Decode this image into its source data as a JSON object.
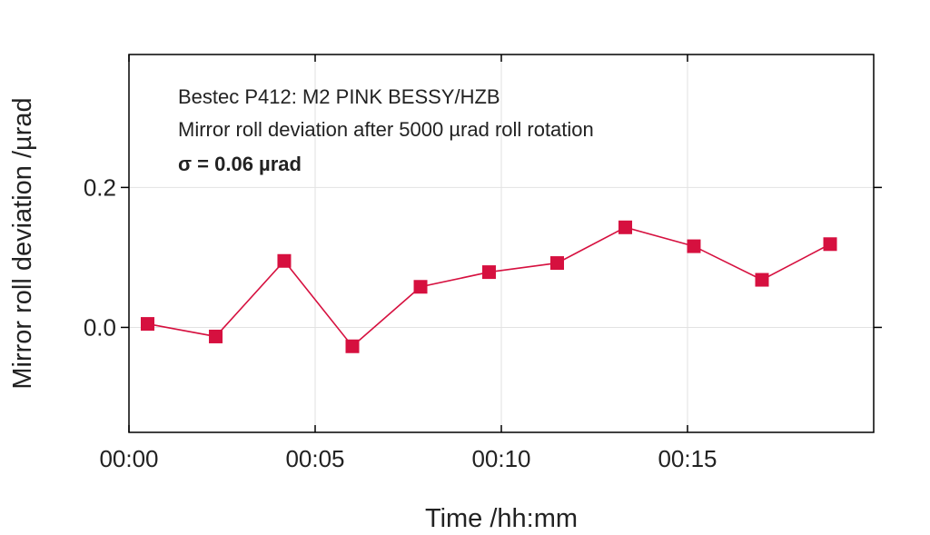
{
  "chart_data": {
    "type": "line",
    "xlabel": "Time /hh:mm",
    "ylabel": "Mirror roll deviation /µrad",
    "xlim": [
      0,
      20
    ],
    "ylim": [
      -0.15,
      0.39
    ],
    "xticks": [
      {
        "value": 0,
        "label": "00:00"
      },
      {
        "value": 5,
        "label": "00:05"
      },
      {
        "value": 10,
        "label": "00:10"
      },
      {
        "value": 15,
        "label": "00:15"
      }
    ],
    "yticks": [
      {
        "value": 0.0,
        "label": "0.0"
      },
      {
        "value": 0.2,
        "label": "0.2"
      }
    ],
    "grid": true,
    "annotations": [
      "Bestec P412: M2 PINK BESSY/HZB",
      "Mirror roll deviation after 5000 µrad roll rotation",
      "σ = 0.06 µrad"
    ],
    "colors": {
      "series": "#d6103f",
      "axis": "#000000",
      "grid": "#e2e2e2"
    },
    "series": [
      {
        "marker": "square",
        "x": [
          0.5,
          2.33,
          4.17,
          6.0,
          7.83,
          9.67,
          11.5,
          13.33,
          15.17,
          17.0,
          18.83
        ],
        "values": [
          0.005,
          -0.013,
          0.095,
          -0.027,
          0.058,
          0.079,
          0.092,
          0.143,
          0.116,
          0.068,
          0.119
        ]
      }
    ]
  }
}
